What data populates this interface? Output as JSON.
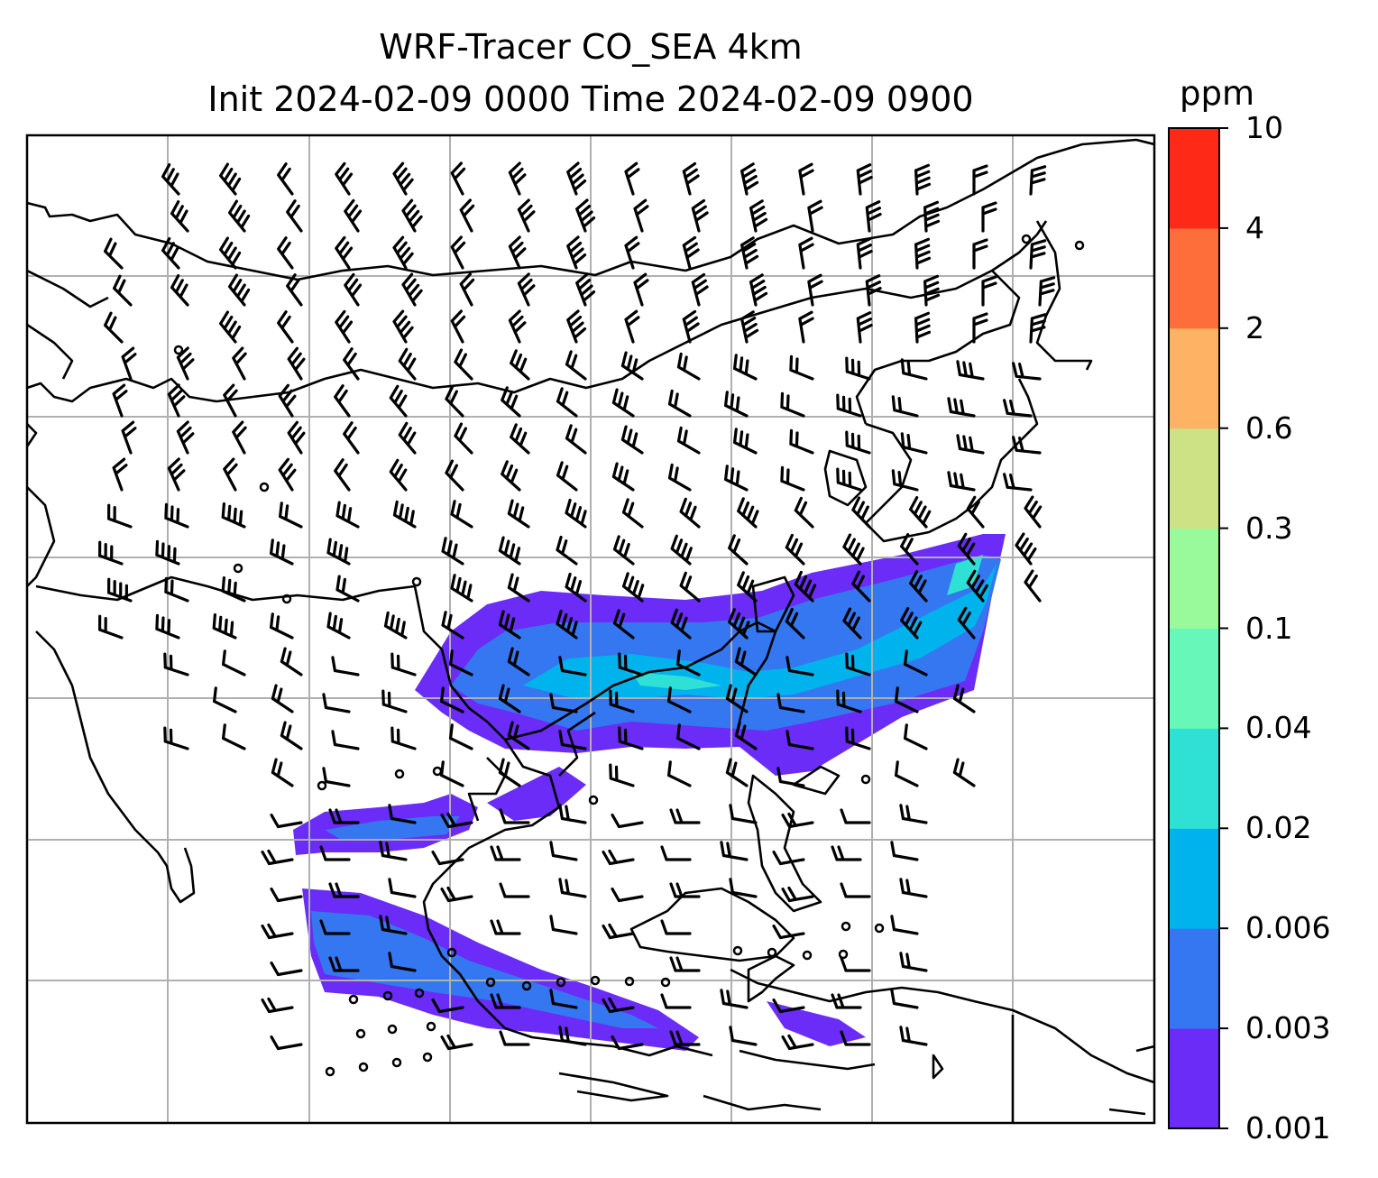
{
  "title": {
    "line1": "WRF-Tracer CO_SEA 4km",
    "line2": "Init 2024-02-09 0000 Time 2024-02-09 0900"
  },
  "colorbar": {
    "unit": "ppm",
    "levels": [
      "0.001",
      "0.003",
      "0.006",
      "0.02",
      "0.04",
      "0.1",
      "0.3",
      "0.6",
      "2",
      "4",
      "10"
    ],
    "colors": [
      "#6a2cf6",
      "#3577f0",
      "#00b3ec",
      "#2fe0d4",
      "#67f7b9",
      "#98fa9a",
      "#cde284",
      "#fdb264",
      "#fe6e3b",
      "#fe2a17"
    ]
  },
  "map": {
    "projection": "lat-lon",
    "gridlines": true,
    "coastline_color": "#000000",
    "grid_color": "#b0b0b0",
    "overlay": "wind barbs",
    "tracer_field": "CO_SEA"
  }
}
